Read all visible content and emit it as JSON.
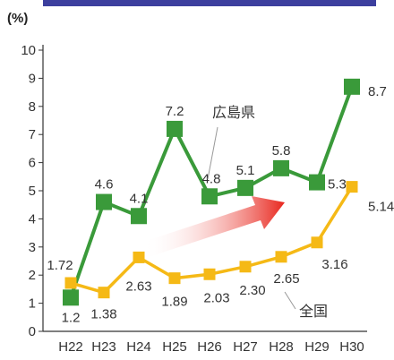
{
  "chart_data": {
    "type": "line",
    "unit_label": "(%)",
    "categories": [
      "H22",
      "H23",
      "H24",
      "H25",
      "H26",
      "H27",
      "H28",
      "H29",
      "H30"
    ],
    "ylim": [
      0,
      10
    ],
    "yticks": [
      "0",
      "1",
      "2",
      "3",
      "4",
      "5",
      "6",
      "7",
      "8",
      "9",
      "10"
    ],
    "grid": false,
    "series": [
      {
        "name": "広島県",
        "color": "#3a9a3a",
        "marker": "square",
        "values": [
          1.2,
          4.6,
          4.1,
          7.2,
          4.8,
          5.1,
          5.8,
          5.3,
          8.7
        ],
        "labels": [
          "1.2",
          "4.6",
          "4.1",
          "7.2",
          "4.8",
          "5.1",
          "5.8",
          "5.3",
          "8.7"
        ]
      },
      {
        "name": "全国",
        "color": "#f5b916",
        "marker": "square",
        "values": [
          1.72,
          1.38,
          2.63,
          1.89,
          2.03,
          2.3,
          2.65,
          3.16,
          5.14
        ],
        "labels": [
          "1.72",
          "1.38",
          "2.63",
          "1.89",
          "2.03",
          "2.30",
          "2.65",
          "3.16",
          "5.14"
        ]
      }
    ],
    "colors": {
      "topbar": "#3c3f9e",
      "arrow": "#e8261d",
      "axis": "#333333"
    }
  }
}
